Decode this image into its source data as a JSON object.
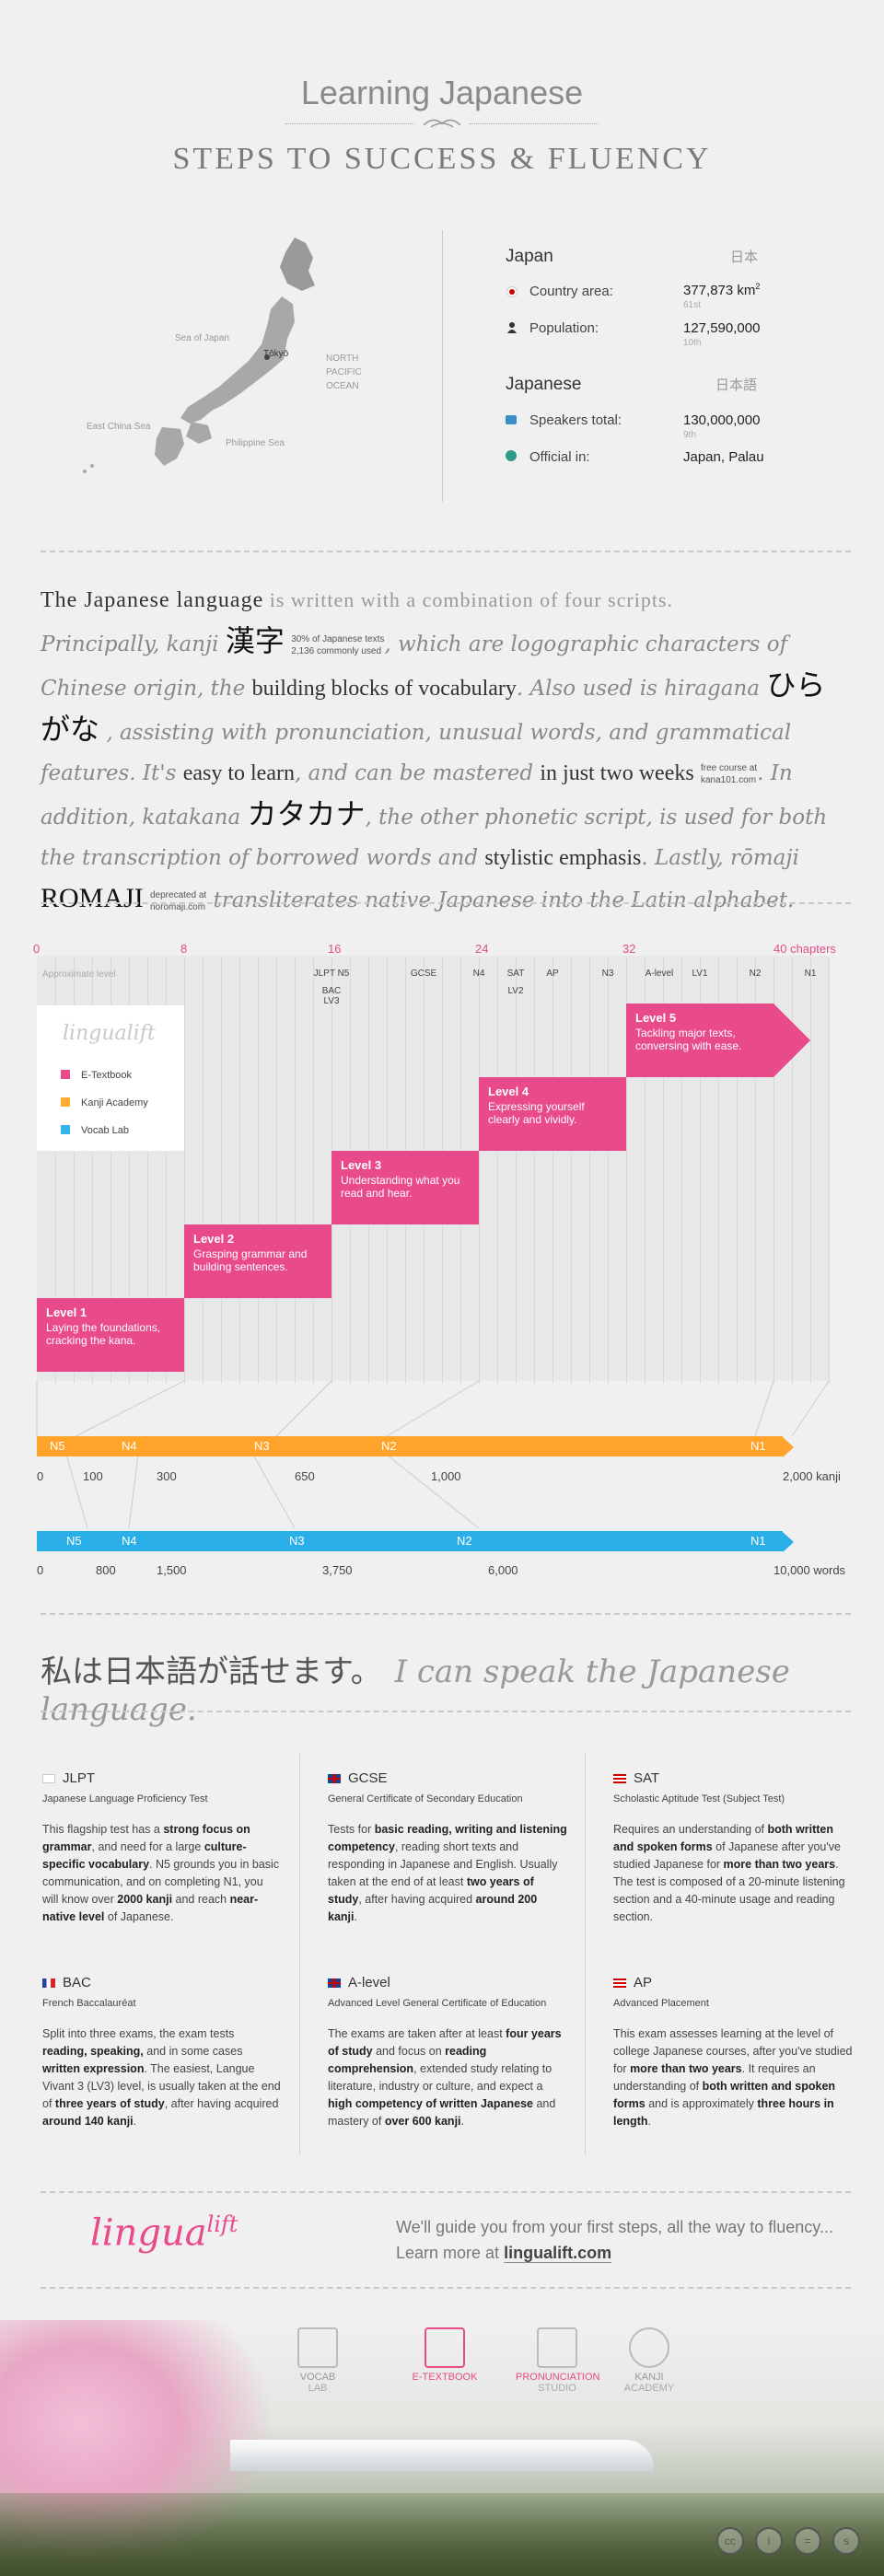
{
  "header": {
    "title": "Learning Japanese",
    "subtitle": "STEPS TO SUCCESS & FLUENCY"
  },
  "map": {
    "labels": [
      "Sea of Japan",
      "Tōkyō",
      "NORTH",
      "PACIFIC",
      "OCEAN",
      "East China Sea",
      "Philippine Sea"
    ]
  },
  "facts": {
    "country_title": "Japan",
    "country_jp": "日本",
    "area_label": "Country area:",
    "area_value": "377,873 km",
    "area_sup": "2",
    "area_rank": "61st",
    "pop_label": "Population:",
    "pop_value": "127,590,000",
    "pop_rank": "10th",
    "lang_title": "Japanese",
    "lang_jp": "日本語",
    "speakers_label": "Speakers total:",
    "speakers_value": "130,000,000",
    "speakers_rank": "9th",
    "official_label": "Official in:",
    "official_value": "Japan, Palau"
  },
  "scripts": {
    "h1": "The Japanese language",
    "h2": "is written with a combination of four scripts.",
    "p1": "Principally, kanji",
    "kanji": "漢字",
    "kanji_note1": "30% of Japanese texts",
    "kanji_note2": "2,136 commonly used",
    "p2": ", which are logographic characters of Chinese origin, the",
    "p2b": "building blocks of vocabulary",
    "p3": ". Also used is hiragana",
    "hiragana": "ひらがな",
    "p4": ", assisting with pronunciation, unusual words, and grammatical features. It's",
    "p4b": "easy to learn",
    "p5": ", and can be mastered",
    "p5b": "in just two weeks",
    "hira_note1": "free course at",
    "hira_note2": "kana101.com",
    "p6": ". In addition, katakana",
    "katakana": "カタカナ",
    "p7": ", the other phonetic script, is used for both the transcription of borrowed words and",
    "p7b": "stylistic emphasis",
    "p8": ". Lastly, rōmaji",
    "romaji": "ROMAJI",
    "romaji_note1": "deprecated at",
    "romaji_note2": "noromaji.com",
    "p9": "transliterates native Japanese into the Latin alphabet."
  },
  "chart_data": {
    "type": "gantt",
    "axis_ticks": [
      0,
      8,
      16,
      24,
      32,
      40
    ],
    "axis_unit": "chapters",
    "approx_label": "Approximate level",
    "level_markers": [
      {
        "chapter": 16,
        "labels": [
          "JLPT N5",
          "BAC LV3"
        ]
      },
      {
        "chapter": 21,
        "labels": [
          "GCSE"
        ]
      },
      {
        "chapter": 24,
        "labels": [
          "N4"
        ]
      },
      {
        "chapter": 26,
        "labels": [
          "SAT",
          "LV2"
        ]
      },
      {
        "chapter": 28,
        "labels": [
          "AP"
        ]
      },
      {
        "chapter": 31,
        "labels": [
          "N3"
        ]
      },
      {
        "chapter": 33.8,
        "labels": [
          "A-level"
        ]
      },
      {
        "chapter": 36,
        "labels": [
          "LV1"
        ]
      },
      {
        "chapter": 39,
        "labels": [
          "N2"
        ]
      },
      {
        "chapter": 42,
        "labels": [
          "N1"
        ]
      }
    ],
    "legend_brand": "lingualift",
    "legend": [
      {
        "name": "E-Textbook",
        "color": "#e84a8a"
      },
      {
        "name": "Kanji Academy",
        "color": "#ffad33"
      },
      {
        "name": "Vocab Lab",
        "color": "#33b5e5"
      }
    ],
    "levels": [
      {
        "start": 0,
        "end": 8,
        "title": "Level 1",
        "text": "Laying the foundations, cracking the kana."
      },
      {
        "start": 8,
        "end": 16,
        "title": "Level 2",
        "text": "Grasping grammar and building sentences."
      },
      {
        "start": 16,
        "end": 24,
        "title": "Level 3",
        "text": "Understanding what you read and hear."
      },
      {
        "start": 24,
        "end": 32,
        "title": "Level 4",
        "text": "Expressing yourself clearly and vividly."
      },
      {
        "start": 32,
        "end": 40,
        "title": "Level 5",
        "text": "Tackling major texts, conversing with ease."
      }
    ],
    "kanji_bar": {
      "marks": [
        {
          "label": "N5",
          "value": 0
        },
        {
          "label": "N4",
          "value": 100
        },
        {
          "label": "N3",
          "value": 650
        },
        {
          "label": "N2",
          "value": 1000
        },
        {
          "label": "N1",
          "value": 2000
        }
      ],
      "numbers": [
        "0",
        "100",
        "300",
        "650",
        "1,000",
        "2,000 kanji"
      ]
    },
    "vocab_bar": {
      "marks": [
        {
          "label": "N5",
          "value": 0
        },
        {
          "label": "N4",
          "value": 800
        },
        {
          "label": "N3",
          "value": 3750
        },
        {
          "label": "N2",
          "value": 6000
        },
        {
          "label": "N1",
          "value": 10000
        }
      ],
      "numbers": [
        "0",
        "800",
        "1,500",
        "3,750",
        "6,000",
        "10,000 words"
      ]
    }
  },
  "phrase": {
    "jp": "私は日本語が話せます。",
    "en": "I can speak the Japanese language."
  },
  "exams": [
    {
      "title": "JLPT",
      "sub": "Japanese Language Proficiency Test",
      "flag": "jp",
      "body": "This flagship test has a <b>strong focus on grammar</b>, and need for a large <b>culture-specific vocabulary</b>. N5 grounds you in basic communication, and on completing N1, you will know over <b>2000 kanji</b> and reach <b>near-native level</b> of Japanese."
    },
    {
      "title": "GCSE",
      "sub": "General Certificate of Secondary Education",
      "flag": "uk",
      "body": "Tests for <b>basic reading, writing and listening competency</b>, reading short texts and responding in Japanese and English. Usually taken at the end of at least <b>two years of study</b>, after having acquired <b>around 200 kanji</b>."
    },
    {
      "title": "SAT",
      "sub": "Scholastic Aptitude Test (Subject Test)",
      "flag": "us",
      "body": "Requires an understanding of <b>both written and spoken forms</b> of Japanese after you've studied Japanese for <b>more than two years</b>. The test is composed of a 20-minute listening section and a 40-minute usage and reading section."
    },
    {
      "title": "BAC",
      "sub": "French Baccalauréat",
      "flag": "fr",
      "body": "Split into three exams, the exam tests <b>reading, speaking,</b> and in some cases <b>written expression</b>. The easiest, Langue Vivant 3 (LV3) level, is usually taken at the end of <b>three years of study</b>, after having acquired <b>around 140 kanji</b>."
    },
    {
      "title": "A-level",
      "sub": "Advanced Level General Certificate of Education",
      "flag": "uk",
      "body": "The exams are taken after at least <b>four years of study</b> and focus on <b>reading comprehension</b>, extended study relating to literature, industry or culture, and expect a <b>high competency of written Japanese</b> and mastery of <b>over 600 kanji</b>."
    },
    {
      "title": "AP",
      "sub": "Advanced Placement",
      "flag": "us",
      "body": "This exam assesses learning at the level of college Japanese courses, after you've studied for <b>more than two years</b>. It requires an understanding of <b>both written and spoken forms</b> and is approximately <b>three hours in length</b>."
    }
  ],
  "footer": {
    "logo": "lingua",
    "logo_sup": "lift",
    "tag1": "We'll guide you from your first steps, all the way to fluency...",
    "tag2": "Learn more at",
    "tag_link": "lingualift.com",
    "products": [
      {
        "name": "VOCAB",
        "name2": "LAB"
      },
      {
        "name": "E-TEXTBOOK",
        "name2": ""
      },
      {
        "name": "PRONUNCIATION",
        "name2": "STUDIO"
      },
      {
        "name": "KANJI",
        "name2": "ACADEMY"
      }
    ],
    "icons": [
      "cc",
      "i",
      "=",
      "s"
    ]
  },
  "colors": {
    "pink": "#e84a8a",
    "orange": "#ffad33",
    "blue": "#33b5e5"
  }
}
